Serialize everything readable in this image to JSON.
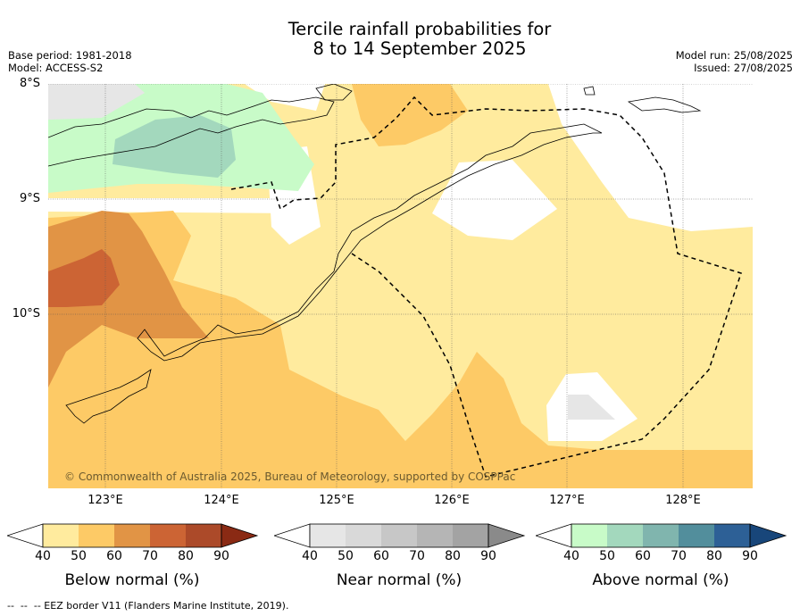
{
  "title_line1": "Tercile rainfall probabilities for",
  "title_line2": "8 to 14 September 2025",
  "base_period": "Base period: 1981-2018",
  "model": "Model: ACCESS-S2",
  "model_run": "Model run: 25/08/2025",
  "issued": "Issued: 27/08/2025",
  "latitudes": [
    "8°S",
    "9°S",
    "10°S"
  ],
  "longitudes": [
    "123°E",
    "124°E",
    "125°E",
    "126°E",
    "127°E",
    "128°E"
  ],
  "copyright": "© Commonwealth of Australia 2025, Bureau of Meteorology, supported by COSPPac",
  "colorbars": [
    {
      "title": "Below normal (%)",
      "ticks": [
        "40",
        "50",
        "60",
        "70",
        "80",
        "90"
      ],
      "colors": [
        "#ffffff",
        "#ffeb9e",
        "#fdca66",
        "#e19445",
        "#cc6434",
        "#ac4a29",
        "#8a2a14"
      ]
    },
    {
      "title": "Near normal (%)",
      "ticks": [
        "40",
        "50",
        "60",
        "70",
        "80",
        "90"
      ],
      "colors": [
        "#ffffff",
        "#e6e6e6",
        "#d9d9d9",
        "#c7c7c7",
        "#b5b5b5",
        "#a3a3a3",
        "#8a8a8a"
      ]
    },
    {
      "title": "Above normal (%)",
      "ticks": [
        "40",
        "50",
        "60",
        "70",
        "80",
        "90"
      ],
      "colors": [
        "#ffffff",
        "#c8fbc8",
        "#a3d8bd",
        "#80b5ae",
        "#528e9c",
        "#2d6096",
        "#18467a"
      ]
    }
  ],
  "footer": "--  --  -- EEZ border V11 (Flanders Marine Institute, 2019)."
}
